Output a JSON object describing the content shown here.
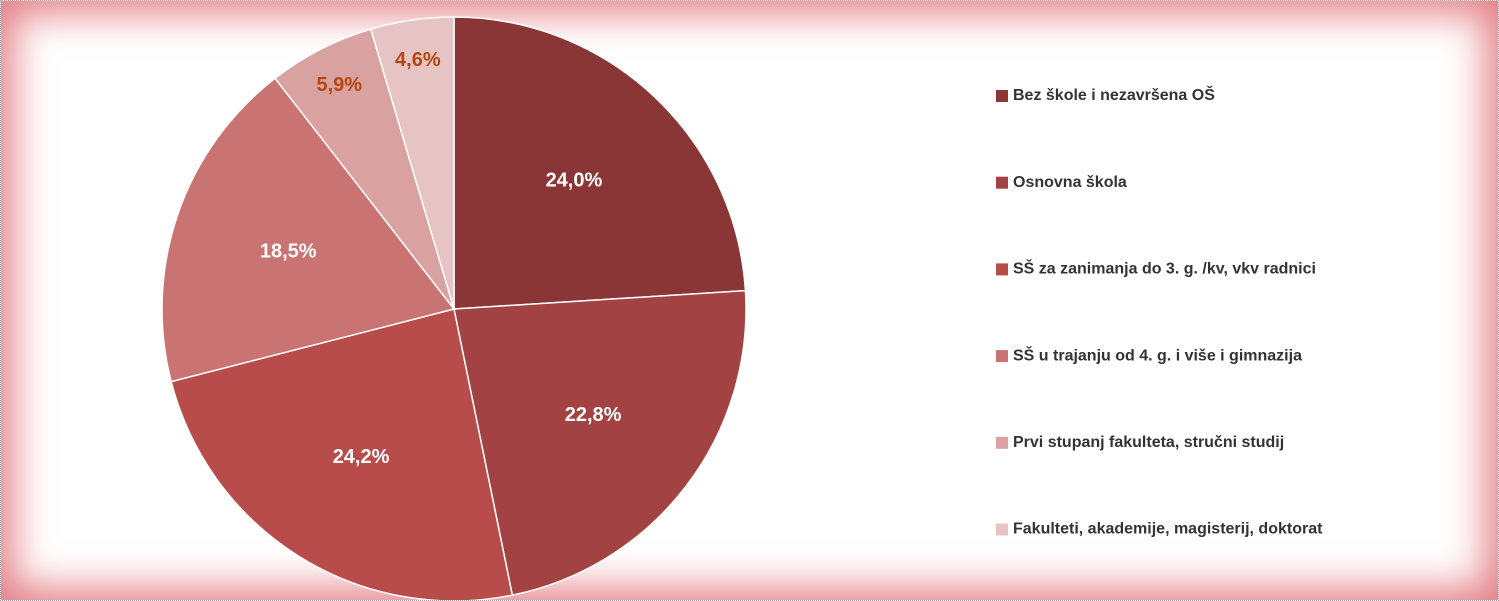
{
  "chart_data": {
    "type": "pie",
    "categories": [
      "Bez škole i nezavršena OŠ",
      "Osnovna škola",
      "SŠ za zanimanja do 3. g. /kv, vkv radnici",
      "SŠ u trajanju od 4. g. i više i gimnazija",
      "Prvi stupanj fakulteta, stručni studij",
      "Fakulteti, akademije, magisterij, doktorat"
    ],
    "values": [
      24.0,
      22.8,
      24.2,
      18.5,
      5.9,
      4.6
    ],
    "value_labels": [
      "24,0%",
      "22,8%",
      "24,2%",
      "18,5%",
      "5,9%",
      "4,6%"
    ],
    "colors": [
      "#8b3636",
      "#a34242",
      "#b84c4b",
      "#c97372",
      "#d9a1a0",
      "#e7c4c4"
    ],
    "label_colors": [
      "#ffffff",
      "#ffffff",
      "#ffffff",
      "#ffffff",
      "#b5460f",
      "#b5460f"
    ],
    "legend": "right"
  }
}
